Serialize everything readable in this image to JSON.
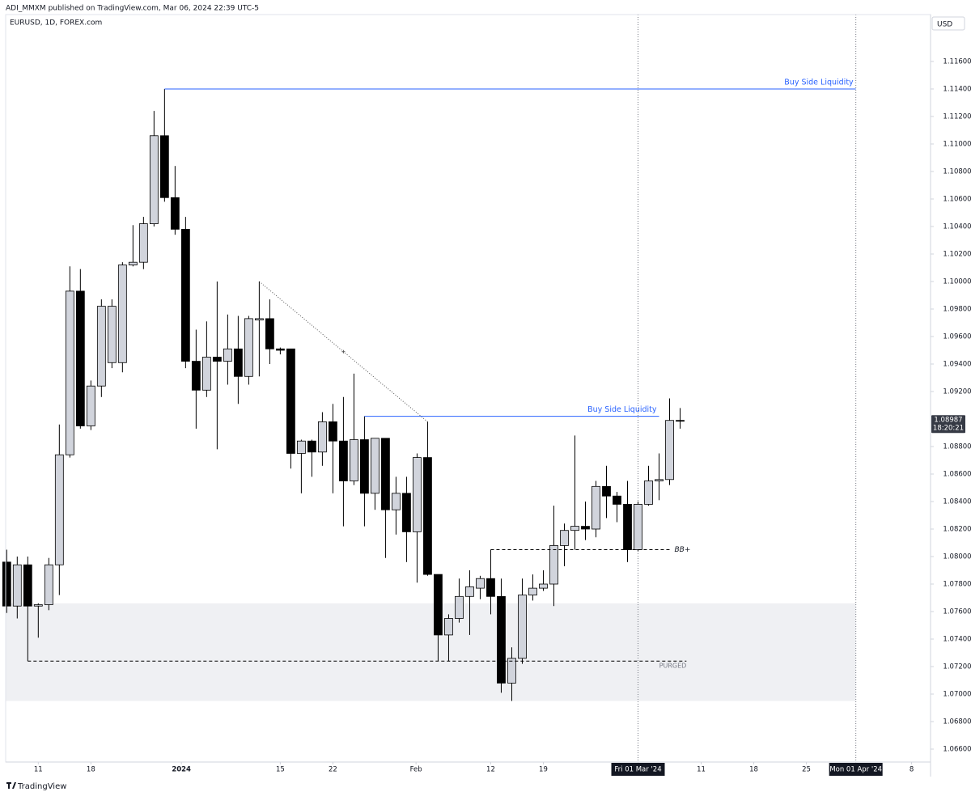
{
  "header": {
    "publisher": "ADI_MMXM published on TradingView.com, Mar 06, 2024 22:39 UTC-5",
    "symbol": "EURUSD, 1D, FOREX.com",
    "currency": "USD"
  },
  "footer": {
    "brand": "TradingView"
  },
  "chart_data": {
    "type": "candlestick",
    "up_color": "#d1d4dc",
    "down_color": "#000000",
    "border_color": "#000000",
    "open": [
      1.0796,
      1.0764,
      1.0794,
      1.0764,
      1.0765,
      1.0794,
      1.0874,
      1.0993,
      1.0895,
      1.0924,
      1.0941,
      1.0941,
      1.1012,
      1.1014,
      1.1042,
      1.1106,
      1.1061,
      1.1038,
      1.0942,
      1.0921,
      1.0945,
      1.0942,
      1.0951,
      1.0931,
      1.0972,
      1.0973,
      1.0951,
      1.0951,
      1.0875,
      1.0884,
      1.0876,
      1.0898,
      1.0884,
      1.0855,
      1.0885,
      1.0846,
      1.0886,
      1.0834,
      1.0846,
      1.0818,
      1.0872,
      1.0787,
      1.0743,
      1.0755,
      1.0771,
      1.0777,
      1.0784,
      1.0771,
      1.0708,
      1.0726,
      1.0772,
      1.0777,
      1.078,
      1.0808,
      1.0819,
      1.0822,
      1.082,
      1.0851,
      1.0844,
      1.0838,
      1.0805,
      1.0838,
      1.0855,
      1.0856,
      1.0899
    ],
    "high": [
      1.0805,
      1.08,
      1.08,
      1.0766,
      1.0799,
      1.0896,
      1.1011,
      1.1009,
      1.0928,
      1.0987,
      1.0987,
      1.1014,
      1.1041,
      1.1047,
      1.1124,
      1.114,
      1.1084,
      1.1047,
      1.0965,
      1.0971,
      1.1,
      1.0976,
      1.0975,
      1.0975,
      1.1,
      1.0987,
      1.0952,
      1.0951,
      1.0885,
      1.0885,
      1.0905,
      1.0911,
      1.0916,
      1.0933,
      1.0902,
      1.0886,
      1.0886,
      1.0858,
      1.0858,
      1.0875,
      1.0898,
      1.0787,
      1.0758,
      1.0784,
      1.079,
      1.0786,
      1.0805,
      1.0784,
      1.0734,
      1.0784,
      1.0787,
      1.079,
      1.0837,
      1.0824,
      1.0888,
      1.084,
      1.0855,
      1.0866,
      1.0847,
      1.0855,
      1.084,
      1.0866,
      1.0875,
      1.0915,
      1.0908
    ],
    "low": [
      1.0759,
      1.0755,
      1.0724,
      1.0741,
      1.0761,
      1.0772,
      1.0872,
      1.0893,
      1.0892,
      1.0916,
      1.0937,
      1.0934,
      1.1011,
      1.1009,
      1.104,
      1.1058,
      1.1034,
      1.0937,
      1.0893,
      1.0916,
      1.0878,
      1.0925,
      1.0911,
      1.0925,
      1.0931,
      1.094,
      1.0947,
      1.0864,
      1.0846,
      1.0858,
      1.0866,
      1.0846,
      1.0822,
      1.0852,
      1.0822,
      1.0834,
      1.0799,
      1.0816,
      1.0796,
      1.0781,
      1.0786,
      1.0724,
      1.0724,
      1.0752,
      1.0743,
      1.0769,
      1.0758,
      1.0701,
      1.0695,
      1.0722,
      1.0768,
      1.0775,
      1.0764,
      1.0793,
      1.0805,
      1.0812,
      1.0814,
      1.0828,
      1.0825,
      1.0796,
      1.0804,
      1.0837,
      1.0841,
      1.0852,
      1.0893
    ],
    "close": [
      1.0764,
      1.0794,
      1.0764,
      1.0765,
      1.0794,
      1.0874,
      1.0993,
      1.0895,
      1.0924,
      1.0982,
      1.0982,
      1.1012,
      1.1014,
      1.1042,
      1.1106,
      1.1061,
      1.1038,
      1.0942,
      1.0921,
      1.0945,
      1.0942,
      1.0951,
      1.0931,
      1.0973,
      1.0973,
      1.0951,
      1.095,
      1.0875,
      1.0884,
      1.0876,
      1.0898,
      1.0884,
      1.0855,
      1.0885,
      1.0846,
      1.0886,
      1.0834,
      1.0846,
      1.0818,
      1.0872,
      1.0787,
      1.0743,
      1.0755,
      1.0771,
      1.0778,
      1.0784,
      1.0771,
      1.0708,
      1.0726,
      1.0772,
      1.0777,
      1.078,
      1.0808,
      1.0819,
      1.0822,
      1.082,
      1.0851,
      1.0844,
      1.0838,
      1.0805,
      1.0838,
      1.0855,
      1.0856,
      1.0899,
      1.08987
    ],
    "last_price": 1.08987,
    "countdown": "18:20:21",
    "xlim": [
      -0.1,
      87.8
    ],
    "ylim": [
      1.06506,
      1.11941
    ],
    "xticks": [
      {
        "value": 3,
        "label": "11"
      },
      {
        "value": 8,
        "label": "18"
      },
      {
        "value": 16.6,
        "label": "2024",
        "bold": true
      },
      {
        "value": 26,
        "label": "15"
      },
      {
        "value": 31,
        "label": "22"
      },
      {
        "value": 38.9,
        "label": "Feb"
      },
      {
        "value": 46,
        "label": "12"
      },
      {
        "value": 51,
        "label": "19"
      },
      {
        "value": 60,
        "label": "Fri 01 Mar '24",
        "boxed": true
      },
      {
        "value": 66,
        "label": "11"
      },
      {
        "value": 71,
        "label": "18"
      },
      {
        "value": 76,
        "label": "25"
      },
      {
        "value": 80.7,
        "label": "Mon 01 Apr '24",
        "boxed": true
      },
      {
        "value": 86,
        "label": "8"
      }
    ],
    "yticks": [
      {
        "value": 1.066,
        "label": "1.06600"
      },
      {
        "value": 1.068,
        "label": "1.06800"
      },
      {
        "value": 1.07,
        "label": "1.07000"
      },
      {
        "value": 1.072,
        "label": "1.07200"
      },
      {
        "value": 1.074,
        "label": "1.07400"
      },
      {
        "value": 1.076,
        "label": "1.07600"
      },
      {
        "value": 1.078,
        "label": "1.07800"
      },
      {
        "value": 1.08,
        "label": "1.08000"
      },
      {
        "value": 1.082,
        "label": "1.08200"
      },
      {
        "value": 1.084,
        "label": "1.08400"
      },
      {
        "value": 1.086,
        "label": "1.08600"
      },
      {
        "value": 1.088,
        "label": "1.08800"
      },
      {
        "value": 1.092,
        "label": "1.09200"
      },
      {
        "value": 1.094,
        "label": "1.09400"
      },
      {
        "value": 1.096,
        "label": "1.09600"
      },
      {
        "value": 1.098,
        "label": "1.09800"
      },
      {
        "value": 1.1,
        "label": "1.10000"
      },
      {
        "value": 1.102,
        "label": "1.10200"
      },
      {
        "value": 1.104,
        "label": "1.10400"
      },
      {
        "value": 1.106,
        "label": "1.10600"
      },
      {
        "value": 1.108,
        "label": "1.10800"
      },
      {
        "value": 1.11,
        "label": "1.11000"
      },
      {
        "value": 1.112,
        "label": "1.11200"
      },
      {
        "value": 1.114,
        "label": "1.11400"
      },
      {
        "value": 1.116,
        "label": "1.11600"
      }
    ],
    "grid": false,
    "annotations": {
      "lines": [
        {
          "label": "Buy Side Liquidity",
          "price": 1.114,
          "from": 15,
          "to": 80.7,
          "dash": false,
          "color": "#2962ff"
        },
        {
          "label": "Buy Side Liquidity",
          "price": 1.0902,
          "from": 34,
          "to": 62,
          "dash": false,
          "color": "#2962ff"
        },
        {
          "label": "BB+",
          "price": 1.0805,
          "from": 46,
          "to": 63,
          "dash": true,
          "color": "#000000"
        },
        {
          "label": "PURGED",
          "price": 1.0724,
          "from": 2,
          "to": 64.6,
          "dash": true,
          "color": "#000000"
        }
      ],
      "zone": {
        "top": 1.0766,
        "bottom": 1.0695,
        "from": -0.1,
        "to": 80.7,
        "color": "#eff0f3"
      },
      "trend": {
        "from": [
          24,
          1.1
        ],
        "to": [
          40,
          1.0898
        ]
      },
      "vlines": [
        60,
        80.7
      ]
    }
  }
}
